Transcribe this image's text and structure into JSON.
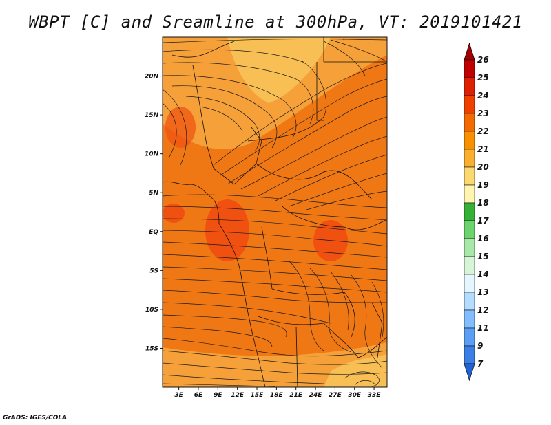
{
  "title": "WBPT [C] and Sreamline at 300hPa, VT: 2019101421",
  "credit": "GrADS: IGES/COLA",
  "map": {
    "lat_labels": [
      "20N",
      "15N",
      "10N",
      "5N",
      "EQ",
      "5S",
      "10S",
      "15S"
    ],
    "lon_labels": [
      "3E",
      "6E",
      "9E",
      "12E",
      "15E",
      "18E",
      "21E",
      "24E",
      "27E",
      "30E",
      "33E"
    ],
    "lat_values": [
      20,
      15,
      10,
      5,
      0,
      -5,
      -10,
      -15
    ],
    "lon_values": [
      3,
      6,
      9,
      12,
      15,
      18,
      21,
      24,
      27,
      30,
      33
    ],
    "lon_range": [
      0.5,
      35
    ],
    "lat_range": [
      -20,
      25
    ]
  },
  "colorbar": {
    "labels": [
      "26",
      "25",
      "24",
      "23",
      "22",
      "21",
      "20",
      "19",
      "18",
      "17",
      "16",
      "15",
      "14",
      "13",
      "12",
      "11",
      "9",
      "7"
    ],
    "colors": [
      "#a50000",
      "#c10000",
      "#dc2000",
      "#f04000",
      "#f56a00",
      "#f99000",
      "#f9b030",
      "#fbd870",
      "#fff5b0",
      "#35b235",
      "#6cd46c",
      "#a8e8a8",
      "#d8f4d8",
      "#e6f6ff",
      "#b4dcff",
      "#82beff",
      "#5a9ef5",
      "#3a7ee6",
      "#2062d8"
    ]
  },
  "colors": {
    "main_field": "#f07814",
    "north_field": "#f5a038",
    "warm_patch": "#f05010",
    "streamline": "#1a1a1a"
  }
}
